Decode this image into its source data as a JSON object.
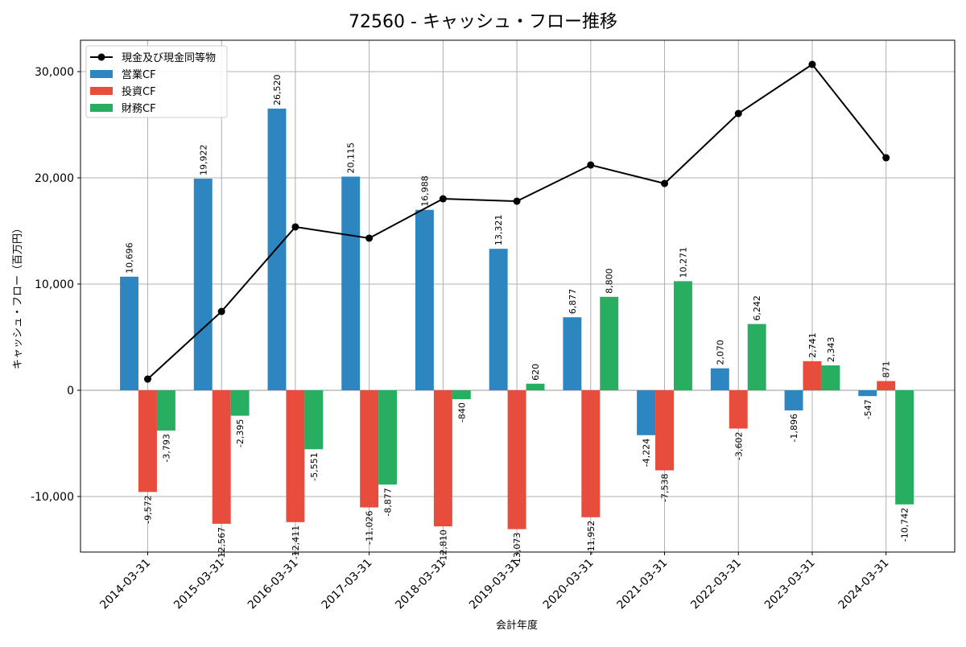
{
  "chart_data": {
    "type": "bar",
    "title": "72560 - キャッシュ・フロー推移",
    "xlabel": "会計年度",
    "ylabel": "キャッシュ・フロー（百万円）",
    "ylim": [
      -15227,
      32955
    ],
    "xlim": [
      -0.91,
      10.93
    ],
    "yticks": [
      -10000,
      0,
      10000,
      20000,
      30000
    ],
    "ytick_labels": [
      "-10,000",
      "0",
      "10,000",
      "20,000",
      "30,000"
    ],
    "grid": true,
    "legend_position": "top-left",
    "categories": [
      "2014-03-31",
      "2015-03-31",
      "2016-03-31",
      "2017-03-31",
      "2018-03-31",
      "2019-03-31",
      "2020-03-31",
      "2021-03-31",
      "2022-03-31",
      "2023-03-31",
      "2024-03-31"
    ],
    "series": [
      {
        "name": "営業CF",
        "kind": "bar",
        "color": "#2e86c1",
        "values": [
          10696,
          19922,
          26520,
          20115,
          16988,
          13321,
          6877,
          -4224,
          2070,
          -1896,
          -547
        ]
      },
      {
        "name": "投資CF",
        "kind": "bar",
        "color": "#e74c3c",
        "values": [
          -9572,
          -12567,
          -12411,
          -11026,
          -12810,
          -13073,
          -11952,
          -7538,
          -3602,
          2741,
          871
        ]
      },
      {
        "name": "財務CF",
        "kind": "bar",
        "color": "#27ae60",
        "values": [
          -3793,
          -2395,
          -5551,
          -8877,
          -840,
          620,
          8800,
          10271,
          6242,
          2343,
          -10742
        ]
      },
      {
        "name": "現金及び現金同等物",
        "kind": "line",
        "color": "#000000",
        "values": [
          1060,
          7420,
          15380,
          14320,
          18030,
          17800,
          21210,
          19470,
          26060,
          30680,
          21890
        ]
      }
    ]
  }
}
